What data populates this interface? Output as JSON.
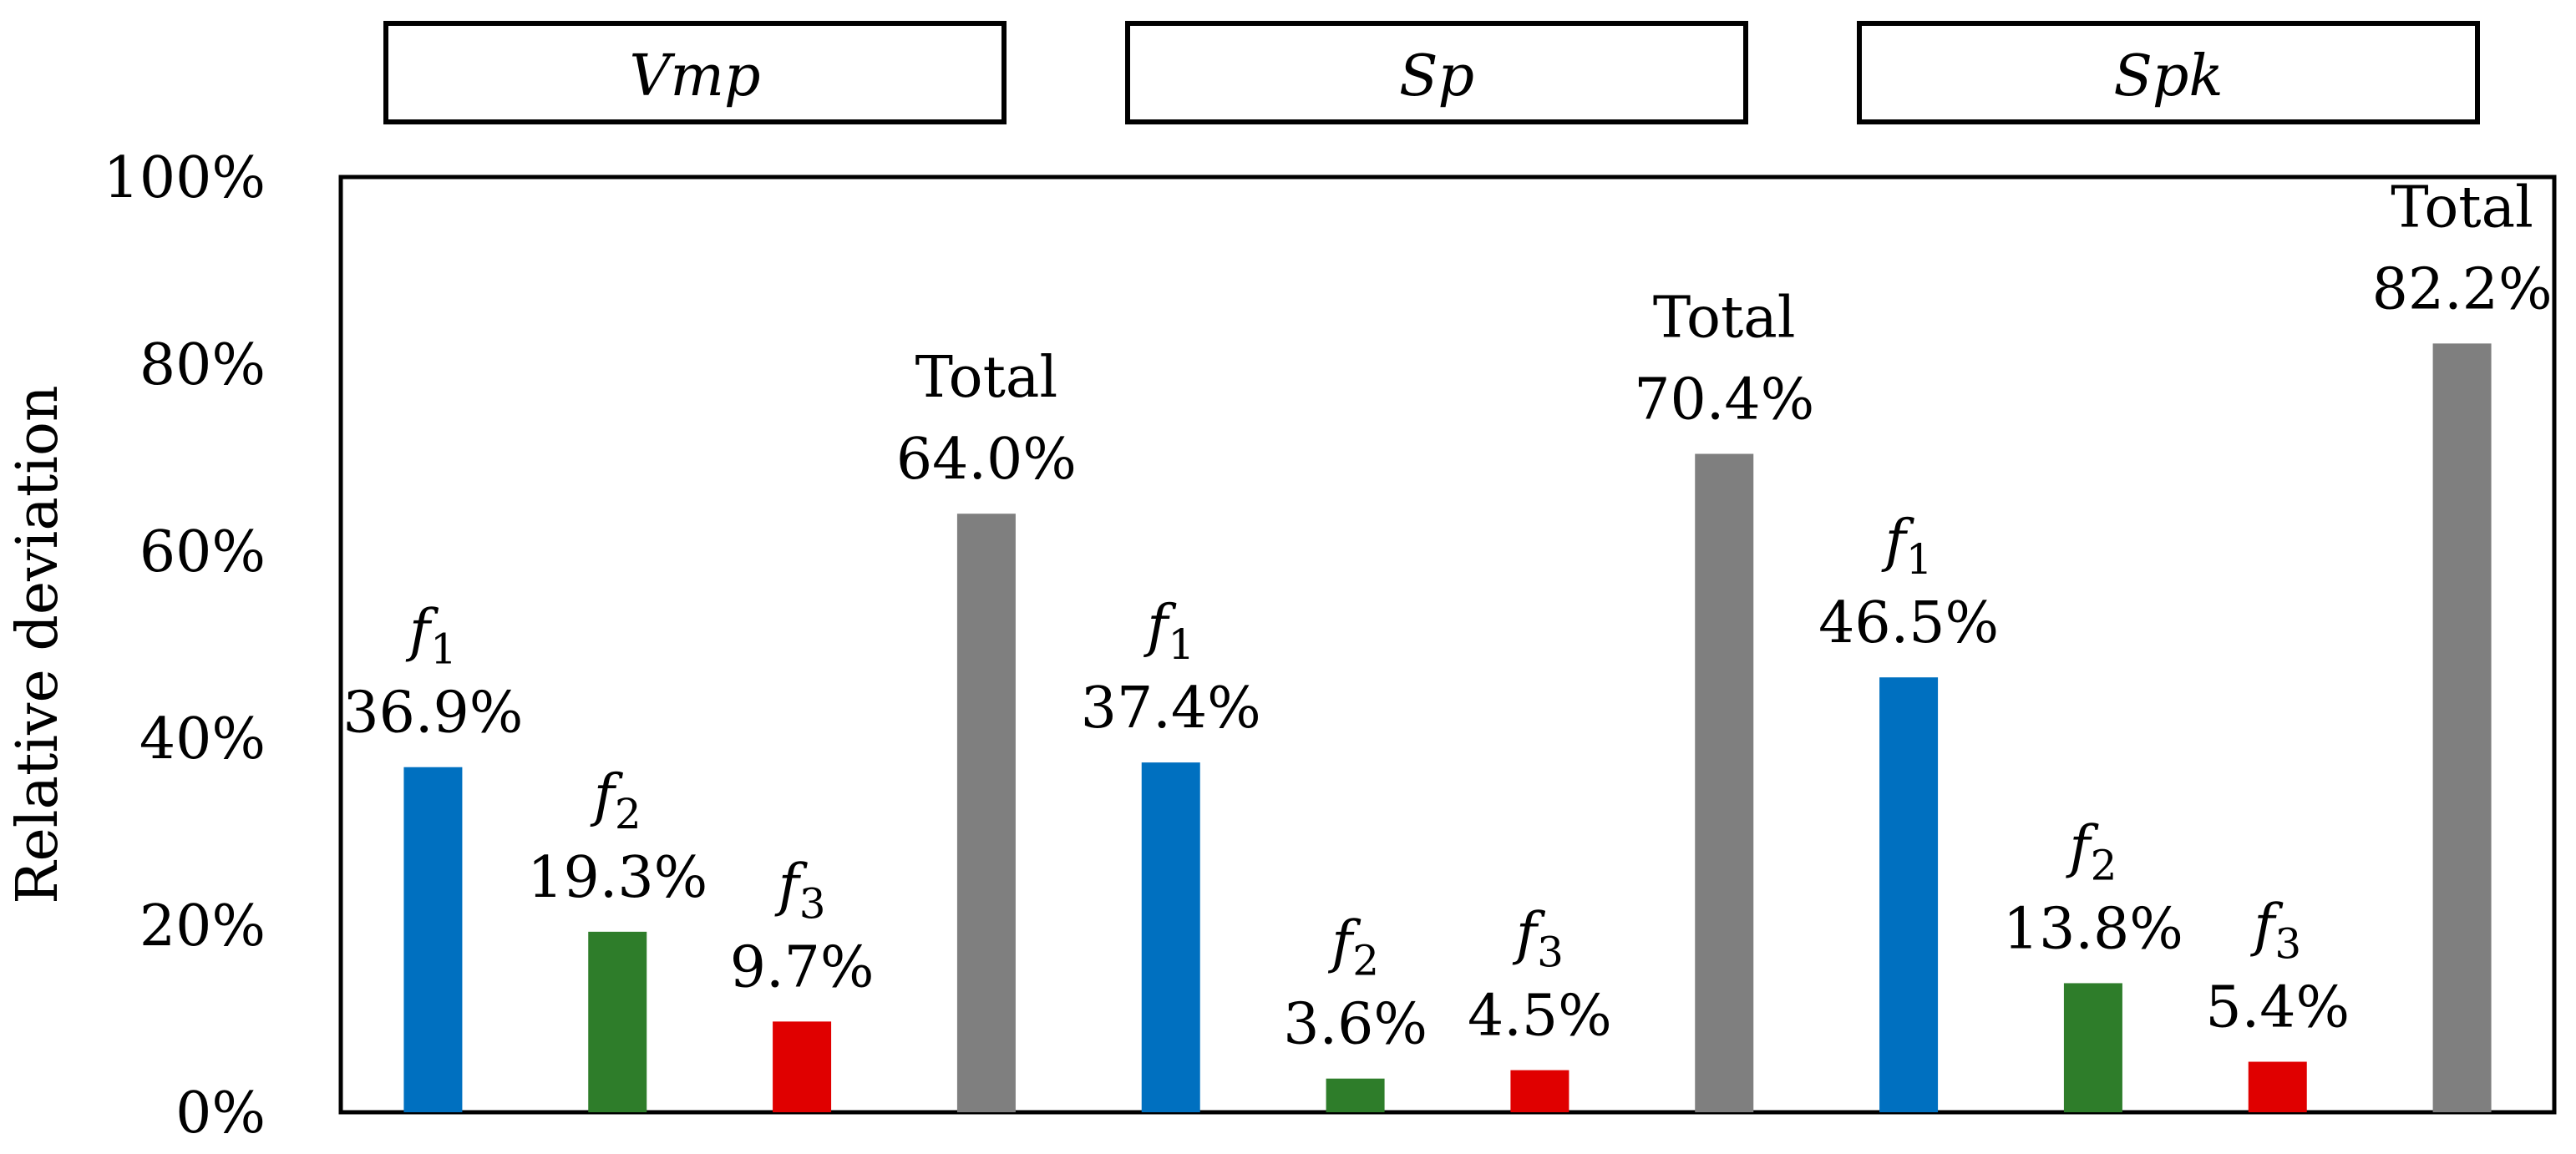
{
  "chart_data": {
    "type": "bar",
    "ylabel": "Relative deviation",
    "xlabel": "",
    "ylim": [
      0,
      100
    ],
    "yticks": [
      "0%",
      "20%",
      "40%",
      "60%",
      "80%",
      "100%"
    ],
    "groups": [
      {
        "name": "Vmp",
        "bars": [
          {
            "category": "f1",
            "factor": "f",
            "sub": "1",
            "value": 36.9,
            "value_label": "36.9%",
            "color": "#0070c0"
          },
          {
            "category": "f2",
            "factor": "f",
            "sub": "2",
            "value": 19.3,
            "value_label": "19.3%",
            "color": "#2e7d2a"
          },
          {
            "category": "f3",
            "factor": "f",
            "sub": "3",
            "value": 9.7,
            "value_label": "9.7%",
            "color": "#e00000"
          },
          {
            "category": "Total",
            "factor": "Total",
            "sub": "",
            "value": 64.0,
            "value_label": "64.0%",
            "color": "#7f7f7f"
          }
        ]
      },
      {
        "name": "Sp",
        "bars": [
          {
            "category": "f1",
            "factor": "f",
            "sub": "1",
            "value": 37.4,
            "value_label": "37.4%",
            "color": "#0070c0"
          },
          {
            "category": "f2",
            "factor": "f",
            "sub": "2",
            "value": 3.6,
            "value_label": "3.6%",
            "color": "#2e7d2a"
          },
          {
            "category": "f3",
            "factor": "f",
            "sub": "3",
            "value": 4.5,
            "value_label": "4.5%",
            "color": "#e00000"
          },
          {
            "category": "Total",
            "factor": "Total",
            "sub": "",
            "value": 70.4,
            "value_label": "70.4%",
            "color": "#7f7f7f"
          }
        ]
      },
      {
        "name": "Spk",
        "bars": [
          {
            "category": "f1",
            "factor": "f",
            "sub": "1",
            "value": 46.5,
            "value_label": "46.5%",
            "color": "#0070c0"
          },
          {
            "category": "f2",
            "factor": "f",
            "sub": "2",
            "value": 13.8,
            "value_label": "13.8%",
            "color": "#2e7d2a"
          },
          {
            "category": "f3",
            "factor": "f",
            "sub": "3",
            "value": 5.4,
            "value_label": "5.4%",
            "color": "#e00000"
          },
          {
            "category": "Total",
            "factor": "Total",
            "sub": "",
            "value": 82.2,
            "value_label": "82.2%",
            "color": "#7f7f7f"
          }
        ]
      }
    ]
  }
}
